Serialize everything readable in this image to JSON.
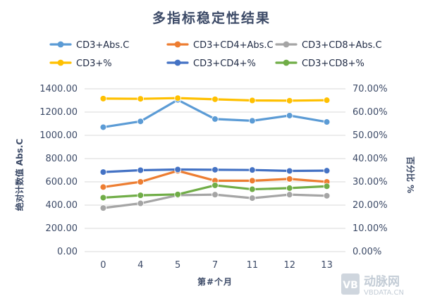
{
  "chart_data": {
    "type": "line",
    "title": "多指标稳定性结果",
    "xlabel": "第#个月",
    "ylabel_left": "绝对计数值 Abs.C",
    "ylabel_right": "百分比 %",
    "categories": [
      "0",
      "4",
      "5",
      "7",
      "11",
      "12",
      "13"
    ],
    "ylim_left": [
      0,
      1400
    ],
    "ylim_right": [
      0,
      70
    ],
    "yticks_left": [
      "0.00",
      "200.00",
      "400.00",
      "600.00",
      "800.00",
      "1000.00",
      "1200.00",
      "1400.00"
    ],
    "yticks_right": [
      "0.00%",
      "10.00%",
      "20.00%",
      "30.00%",
      "40.00%",
      "50.00%",
      "60.00%",
      "70.00%"
    ],
    "grid": true,
    "legend_position": "top",
    "series": [
      {
        "name": "CD3+Abs.C",
        "axis": "left",
        "color": "#5b9bd5",
        "values": [
          1070,
          1120,
          1305,
          1140,
          1125,
          1170,
          1115
        ]
      },
      {
        "name": "CD3+CD4+Abs.C",
        "axis": "left",
        "color": "#ed7d31",
        "values": [
          555,
          600,
          695,
          610,
          610,
          625,
          600
        ]
      },
      {
        "name": "CD3+CD8+Abs.C",
        "axis": "left",
        "color": "#a5a5a5",
        "values": [
          375,
          415,
          485,
          490,
          460,
          490,
          480
        ]
      },
      {
        "name": "CD3+%",
        "axis": "right",
        "color": "#ffc000",
        "values": [
          65.8,
          65.7,
          66.0,
          65.5,
          65.0,
          64.9,
          65.1
        ]
      },
      {
        "name": "CD3+CD4+%",
        "axis": "right",
        "color": "#4472c4",
        "values": [
          34.2,
          35.0,
          35.3,
          35.2,
          35.1,
          34.7,
          34.8
        ]
      },
      {
        "name": "CD3+CD8+%",
        "axis": "right",
        "color": "#70ad47",
        "values": [
          23.2,
          24.2,
          24.6,
          28.5,
          26.8,
          27.3,
          28.1
        ]
      }
    ]
  },
  "watermark": {
    "brand": "动脉网",
    "site": "VBDATA.CN",
    "logo_letters": "VB"
  }
}
